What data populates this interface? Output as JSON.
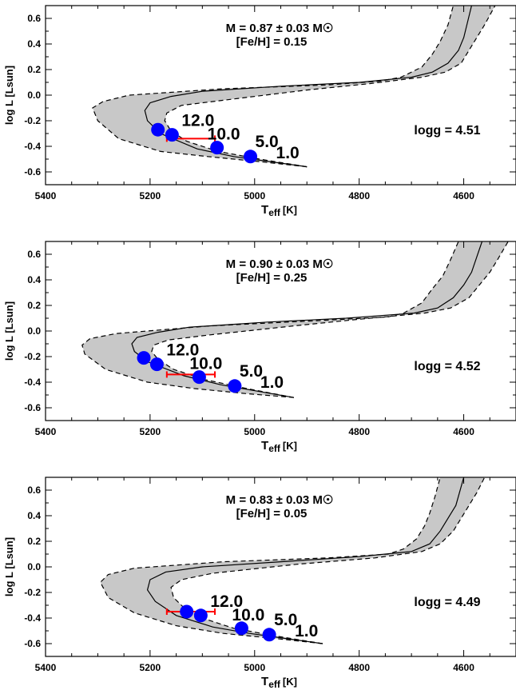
{
  "chart_data": [
    {
      "type": "line",
      "title": "M = 0.87 ± 0.03 M☉",
      "subtitle": "[Fe/H] = 0.15",
      "logg_label": "logg = 4.51",
      "xlabel": "Teff [K]",
      "xlabel_main": "T",
      "xlabel_sub": "eff",
      "xlabel_unit": "[K]",
      "ylabel": "log L [Lsun]",
      "xlim": [
        5400,
        4500
      ],
      "ylim": [
        -0.7,
        0.7
      ],
      "x_ticks": [
        5400,
        5200,
        5000,
        4800,
        4600
      ],
      "y_ticks": [
        -0.6,
        -0.4,
        -0.2,
        0.0,
        0.2,
        0.4,
        0.6
      ],
      "y_tick_labels": [
        "-0.6",
        "-0.4",
        "-0.2",
        "0.0",
        "0.2",
        "0.4",
        "0.6"
      ],
      "track": {
        "x": [
          4900,
          4970,
          5040,
          5110,
          5180,
          5205,
          5210,
          5200,
          5160,
          5100,
          4950,
          4800,
          4700,
          4660,
          4630,
          4610,
          4600,
          4585
        ],
        "y": [
          -0.56,
          -0.52,
          -0.48,
          -0.42,
          -0.3,
          -0.2,
          -0.12,
          -0.06,
          -0.01,
          0.03,
          0.07,
          0.1,
          0.14,
          0.18,
          0.25,
          0.35,
          0.45,
          0.7
        ]
      },
      "band_upper": {
        "x": [
          4900,
          4990,
          5070,
          5130,
          5160,
          5172,
          5168,
          5140,
          5060,
          4900,
          4780,
          4680,
          4635,
          4605,
          4590,
          4575,
          4560,
          4540
        ],
        "y": [
          -0.56,
          -0.5,
          -0.44,
          -0.36,
          -0.28,
          -0.2,
          -0.14,
          -0.08,
          -0.04,
          0.04,
          0.09,
          0.14,
          0.18,
          0.25,
          0.35,
          0.45,
          0.55,
          0.7
        ]
      },
      "band_lower": {
        "x": [
          4900,
          4990,
          5090,
          5180,
          5260,
          5300,
          5310,
          5290,
          5240,
          5060,
          4860,
          4760,
          4720,
          4680,
          4660,
          4645,
          4630,
          4620
        ],
        "y": [
          -0.56,
          -0.52,
          -0.48,
          -0.44,
          -0.34,
          -0.2,
          -0.1,
          -0.05,
          0.0,
          0.05,
          0.08,
          0.11,
          0.14,
          0.22,
          0.32,
          0.42,
          0.55,
          0.7
        ]
      },
      "points": [
        {
          "x": 5185,
          "y": -0.27,
          "label": ""
        },
        {
          "x": 5158,
          "y": -0.31,
          "label": "12.0"
        },
        {
          "x": 5072,
          "y": -0.41,
          "label": "10.0"
        },
        {
          "x": 5008,
          "y": -0.48,
          "label": "5.0"
        },
        {
          "x": 5008,
          "y": -0.48,
          "label": "1.0"
        }
      ],
      "errorbar": {
        "x": 5122,
        "y": -0.34,
        "xerr": 46
      }
    },
    {
      "type": "line",
      "title": "M = 0.90 ± 0.03 M☉",
      "subtitle": "[Fe/H] = 0.25",
      "logg_label": "logg = 4.52",
      "xlabel": "Teff [K]",
      "xlabel_main": "T",
      "xlabel_sub": "eff",
      "xlabel_unit": "[K]",
      "ylabel": "log L [Lsun]",
      "xlim": [
        5400,
        4500
      ],
      "ylim": [
        -0.7,
        0.7
      ],
      "x_ticks": [
        5400,
        5200,
        5000,
        4800,
        4600
      ],
      "y_ticks": [
        -0.6,
        -0.4,
        -0.2,
        0.0,
        0.2,
        0.4,
        0.6
      ],
      "y_tick_labels": [
        "-0.6",
        "-0.4",
        "-0.2",
        "0.0",
        "0.2",
        "0.4",
        "0.6"
      ],
      "track": {
        "x": [
          4925,
          4995,
          5065,
          5135,
          5205,
          5230,
          5235,
          5225,
          5185,
          5125,
          4975,
          4825,
          4695,
          4650,
          4620,
          4600,
          4585,
          4565
        ],
        "y": [
          -0.52,
          -0.47,
          -0.42,
          -0.35,
          -0.24,
          -0.16,
          -0.1,
          -0.05,
          -0.01,
          0.03,
          0.07,
          0.1,
          0.14,
          0.18,
          0.26,
          0.36,
          0.46,
          0.7
        ]
      },
      "band_upper": {
        "x": [
          4925,
          5015,
          5095,
          5155,
          5185,
          5197,
          5193,
          5165,
          5085,
          4925,
          4805,
          4675,
          4625,
          4590,
          4570,
          4550,
          4535,
          4515
        ],
        "y": [
          -0.52,
          -0.45,
          -0.38,
          -0.3,
          -0.22,
          -0.16,
          -0.11,
          -0.07,
          -0.03,
          0.04,
          0.09,
          0.14,
          0.18,
          0.26,
          0.36,
          0.46,
          0.56,
          0.7
        ]
      },
      "band_lower": {
        "x": [
          4925,
          5015,
          5115,
          5205,
          5285,
          5325,
          5330,
          5315,
          5265,
          5085,
          4885,
          4745,
          4715,
          4680,
          4660,
          4640,
          4625,
          4610
        ],
        "y": [
          -0.52,
          -0.49,
          -0.45,
          -0.4,
          -0.3,
          -0.18,
          -0.11,
          -0.06,
          -0.02,
          0.04,
          0.08,
          0.11,
          0.14,
          0.22,
          0.33,
          0.43,
          0.56,
          0.7
        ]
      },
      "points": [
        {
          "x": 5212,
          "y": -0.21,
          "label": ""
        },
        {
          "x": 5187,
          "y": -0.26,
          "label": "12.0"
        },
        {
          "x": 5106,
          "y": -0.36,
          "label": "10.0"
        },
        {
          "x": 5038,
          "y": -0.43,
          "label": "5.0"
        },
        {
          "x": 5038,
          "y": -0.43,
          "label": "1.0"
        }
      ],
      "errorbar": {
        "x": 5122,
        "y": -0.34,
        "xerr": 46
      }
    },
    {
      "type": "line",
      "title": "M = 0.83 ± 0.03 M☉",
      "subtitle": "[Fe/H] = 0.05",
      "logg_label": "logg = 4.49",
      "xlabel": "Teff [K]",
      "xlabel_main": "T",
      "xlabel_sub": "eff",
      "xlabel_unit": "[K]",
      "ylabel": "log L [Lsun]",
      "xlim": [
        5400,
        4500
      ],
      "ylim": [
        -0.7,
        0.7
      ],
      "x_ticks": [
        5400,
        5200,
        5000,
        4800,
        4600
      ],
      "y_ticks": [
        -0.6,
        -0.4,
        -0.2,
        0.0,
        0.2,
        0.4,
        0.6
      ],
      "y_tick_labels": [
        "-0.6",
        "-0.4",
        "-0.2",
        "0.0",
        "0.2",
        "0.4",
        "0.6"
      ],
      "track": {
        "x": [
          4870,
          4940,
          5010,
          5080,
          5150,
          5190,
          5205,
          5200,
          5170,
          5100,
          4950,
          4800,
          4700,
          4665,
          4645,
          4630,
          4615,
          4600
        ],
        "y": [
          -0.6,
          -0.56,
          -0.52,
          -0.47,
          -0.38,
          -0.27,
          -0.18,
          -0.1,
          -0.04,
          0.0,
          0.04,
          0.08,
          0.12,
          0.18,
          0.28,
          0.38,
          0.48,
          0.7
        ]
      },
      "band_upper": {
        "x": [
          4870,
          4960,
          5040,
          5100,
          5135,
          5155,
          5160,
          5140,
          5080,
          4920,
          4770,
          4680,
          4645,
          4620,
          4605,
          4590,
          4575,
          4560
        ],
        "y": [
          -0.6,
          -0.54,
          -0.48,
          -0.4,
          -0.32,
          -0.24,
          -0.16,
          -0.1,
          -0.05,
          0.02,
          0.07,
          0.12,
          0.18,
          0.28,
          0.38,
          0.48,
          0.58,
          0.7
        ]
      },
      "band_lower": {
        "x": [
          4870,
          4960,
          5060,
          5150,
          5230,
          5280,
          5295,
          5280,
          5230,
          5060,
          4860,
          4745,
          4715,
          4690,
          4675,
          4665,
          4655,
          4645
        ],
        "y": [
          -0.6,
          -0.56,
          -0.52,
          -0.46,
          -0.36,
          -0.24,
          -0.12,
          -0.06,
          -0.01,
          0.04,
          0.07,
          0.1,
          0.14,
          0.22,
          0.32,
          0.42,
          0.55,
          0.7
        ]
      },
      "points": [
        {
          "x": 5130,
          "y": -0.35,
          "label": ""
        },
        {
          "x": 5103,
          "y": -0.38,
          "label": "12.0"
        },
        {
          "x": 5025,
          "y": -0.48,
          "label": "10.0"
        },
        {
          "x": 4972,
          "y": -0.53,
          "label": "5.0"
        },
        {
          "x": 4972,
          "y": -0.53,
          "label": "1.0"
        }
      ],
      "errorbar": {
        "x": 5122,
        "y": -0.35,
        "xerr": 46
      }
    }
  ]
}
